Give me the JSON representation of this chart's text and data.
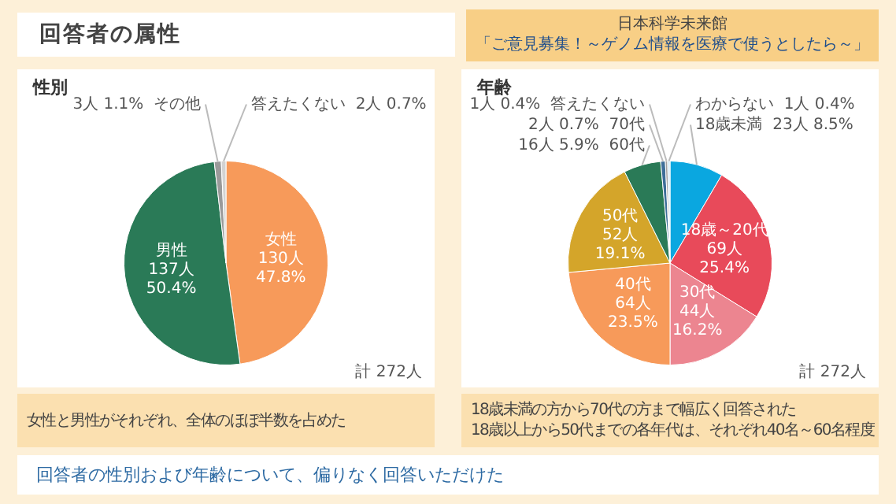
{
  "chart_data": [
    {
      "type": "pie",
      "title": "性別",
      "categories": [
        "女性",
        "男性",
        "その他",
        "答えたくない"
      ],
      "values": [
        130,
        137,
        3,
        2
      ],
      "colors": [
        "#f79a5a",
        "#2a7a57",
        "#9a9a9a",
        "#d3d3d3"
      ],
      "value_labels": [
        "130人 47.8%",
        "137人 50.4%",
        "3人 1.1%",
        "2人 0.7%"
      ],
      "legend": false,
      "annotations": [
        "計 272人",
        "女性と男性がそれぞれ、全体のほぼ半数を占めた",
        "回答者の属性",
        "日本科学未来館",
        "「ご意見募集！～ゲノム情報を医療で使うとしたら～」",
        "回答者の性別および年齢について、偏りなく回答いただけた"
      ]
    },
    {
      "type": "pie",
      "title": "年齢",
      "categories": [
        "18歳未満",
        "18歳～20代",
        "30代",
        "40代",
        "50代",
        "60代",
        "70代",
        "答えたくない",
        "わからない"
      ],
      "values": [
        23,
        69,
        44,
        64,
        52,
        16,
        2,
        1,
        1
      ],
      "colors": [
        "#0aa7e0",
        "#e84a5a",
        "#ec8590",
        "#f79a5a",
        "#d4a52a",
        "#2a7a57",
        "#3d6e99",
        "#a0a0a0",
        "#cfe8f5"
      ],
      "value_labels": [
        "23人 8.5%",
        "69人 25.4%",
        "44人 16.2%",
        "64人 23.5%",
        "52人 19.1%",
        "16人 5.9%",
        "2人 0.7%",
        "1人 0.4%",
        "1人 0.4%"
      ],
      "legend": false,
      "annotations": [
        "計 272人",
        "18歳未満の方から70代の方まで幅広く回答された",
        "18歳以上から50代までの各年代は、それぞれ40名～60名程度"
      ]
    }
  ]
}
